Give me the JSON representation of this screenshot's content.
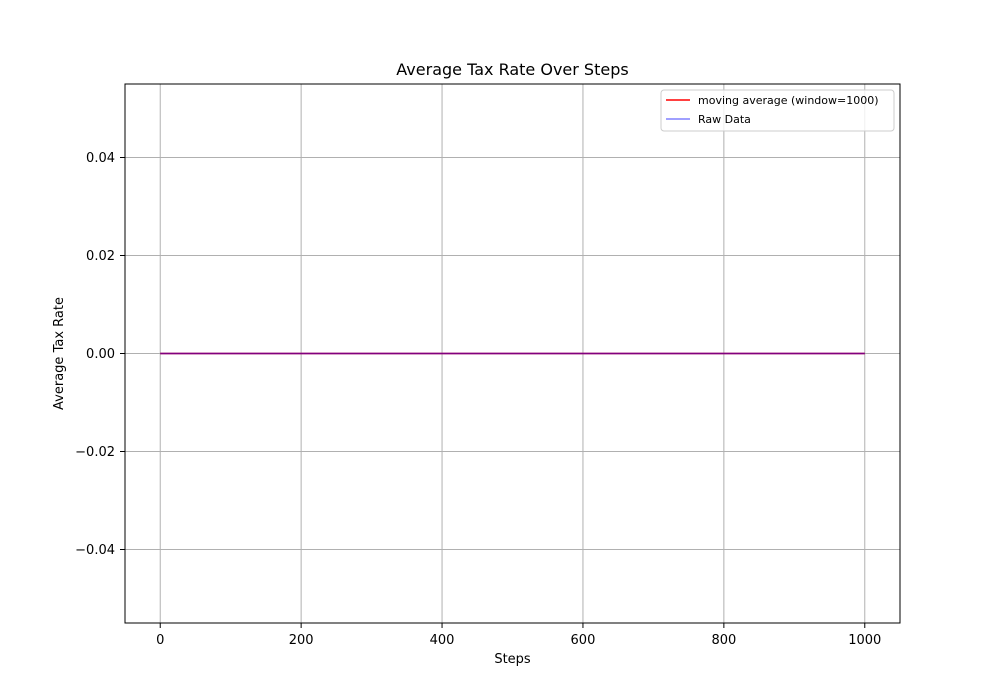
{
  "chart_data": {
    "type": "line",
    "title": "Average Tax Rate Over Steps",
    "xlabel": "Steps",
    "ylabel": "Average Tax Rate",
    "xlim": [
      -50,
      1050
    ],
    "ylim": [
      -0.055,
      0.055
    ],
    "xticks": [
      0,
      200,
      400,
      600,
      800,
      1000
    ],
    "xtick_labels": [
      "0",
      "200",
      "400",
      "600",
      "800",
      "1000"
    ],
    "yticks": [
      -0.04,
      -0.02,
      0.0,
      0.02,
      0.04
    ],
    "ytick_labels": [
      "−0.04",
      "−0.02",
      "0.00",
      "0.02",
      "0.04"
    ],
    "grid": true,
    "legend_position": "top-right",
    "series": [
      {
        "name": "moving average (window=1000)",
        "color": "#ff0000",
        "x": [
          0,
          1000
        ],
        "y": [
          0.0,
          0.0
        ]
      },
      {
        "name": "Raw Data",
        "color": "#8080ff",
        "x": [
          0,
          1000
        ],
        "y": [
          0.0,
          0.0
        ]
      }
    ],
    "overlap_color": "#800080"
  }
}
